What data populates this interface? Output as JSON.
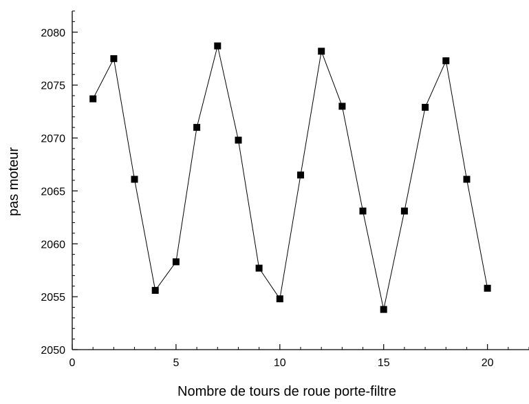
{
  "chart_data": {
    "type": "line",
    "markers": "square",
    "title": "",
    "xlabel": "Nombre de tours de roue porte-filtre",
    "ylabel": "pas moteur",
    "xlim": [
      0,
      22
    ],
    "ylim": [
      2050,
      2082
    ],
    "x_ticks": [
      0,
      5,
      10,
      15,
      20
    ],
    "y_ticks": [
      2050,
      2055,
      2060,
      2065,
      2070,
      2075,
      2080
    ],
    "x_minor_step": 1,
    "y_minor_step": 1,
    "grid": false,
    "legend": "none",
    "colors": {
      "line": "#000000",
      "marker": "#000000",
      "axis": "#000000"
    },
    "series": [
      {
        "x": [
          1,
          2,
          3,
          4,
          5,
          6,
          7,
          8,
          9,
          10,
          11,
          12,
          13,
          14,
          15,
          16,
          17,
          18,
          19,
          20
        ],
        "values": [
          2073.7,
          2077.5,
          2066.1,
          2055.6,
          2058.3,
          2071.0,
          2078.7,
          2069.8,
          2057.7,
          2054.8,
          2066.5,
          2078.2,
          2073.0,
          2063.1,
          2053.8,
          2063.1,
          2072.9,
          2077.3,
          2066.1,
          2055.8
        ]
      }
    ]
  }
}
